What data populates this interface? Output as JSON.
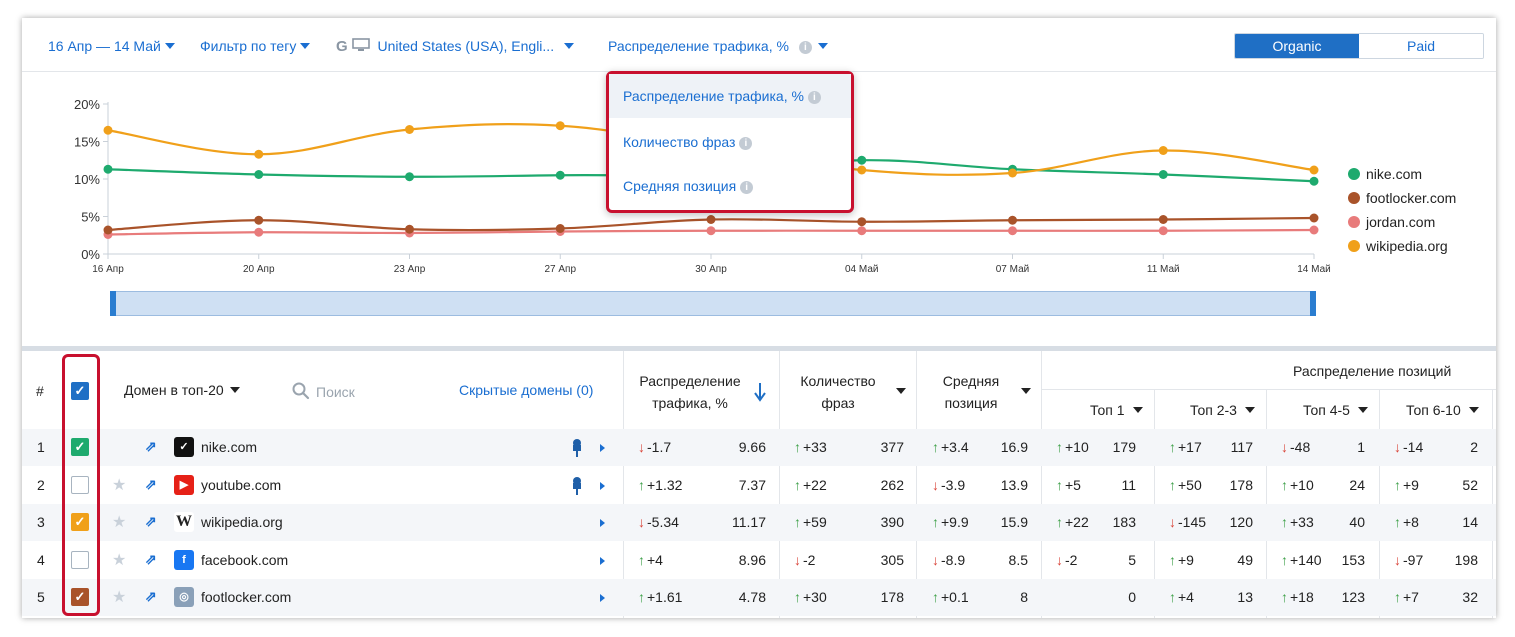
{
  "toolbar": {
    "date_range": "16 Апр — 14 Май",
    "tag_filter": "Фильтр по тегу",
    "region": "United States (USA), Engli...",
    "metric": "Распределение трафика, %",
    "organic": "Organic",
    "paid": "Paid"
  },
  "dropdown": {
    "items": [
      "Распределение трафика, %",
      "Количество фраз",
      "Средняя позиция"
    ]
  },
  "chart_data": {
    "type": "line",
    "x": [
      "16 Апр",
      "20 Апр",
      "23 Апр",
      "27 Апр",
      "30 Апр",
      "04 Май",
      "07 Май",
      "11 Май",
      "14 Май"
    ],
    "ylim": [
      0,
      20
    ],
    "yticks": [
      "0%",
      "5%",
      "10%",
      "15%",
      "20%"
    ],
    "grid": false,
    "legend_position": "right",
    "series": [
      {
        "name": "nike.com",
        "color": "#1eaa6e",
        "values": [
          11.3,
          10.6,
          10.3,
          10.5,
          10.7,
          12.5,
          11.3,
          10.6,
          9.7
        ]
      },
      {
        "name": "footlocker.com",
        "color": "#a9532a",
        "values": [
          3.2,
          4.5,
          3.3,
          3.4,
          4.6,
          4.3,
          4.5,
          4.6,
          4.8
        ]
      },
      {
        "name": "jordan.com",
        "color": "#e87b7b",
        "values": [
          2.6,
          2.9,
          2.8,
          3.0,
          3.1,
          3.1,
          3.1,
          3.1,
          3.2
        ]
      },
      {
        "name": "wikipedia.org",
        "color": "#f0a01a",
        "values": [
          16.5,
          13.3,
          16.6,
          17.1,
          14.2,
          11.2,
          10.8,
          13.8,
          11.2
        ]
      }
    ]
  },
  "table": {
    "headers": {
      "num": "#",
      "domain": "Домен в топ-20",
      "search": "Поиск",
      "hidden": "Скрытые домены (0)",
      "traffic_1": "Распределение",
      "traffic_2": "трафика, %",
      "phrases_1": "Количество",
      "phrases_2": "фраз",
      "avgpos_1": "Средняя",
      "avgpos_2": "позиция",
      "dist": "Распределение позиций",
      "top1": "Топ 1",
      "top23": "Топ 2-3",
      "top45": "Топ 4-5",
      "top610": "Топ 6-10"
    },
    "rows": [
      {
        "num": "1",
        "domain": "nike.com",
        "checked": true,
        "check_color": "#1eaa6e",
        "traffic_d": "-1.7",
        "traffic_dir": "dn",
        "traffic": "9.66",
        "phr_d": "+33",
        "phr_dir": "up",
        "phr": "377",
        "pos_d": "+3.4",
        "pos_dir": "up",
        "pos": "16.9",
        "t1_d": "+10",
        "t1_dir": "up",
        "t1": "179",
        "t23_d": "+17",
        "t23_dir": "up",
        "t23": "117",
        "t45_d": "-48",
        "t45_dir": "dn",
        "t45": "1",
        "t610_d": "-14",
        "t610_dir": "dn",
        "t610": "2"
      },
      {
        "num": "2",
        "domain": "youtube.com",
        "checked": false,
        "check_color": "",
        "traffic_d": "+1.32",
        "traffic_dir": "up",
        "traffic": "7.37",
        "phr_d": "+22",
        "phr_dir": "up",
        "phr": "262",
        "pos_d": "-3.9",
        "pos_dir": "dn",
        "pos": "13.9",
        "t1_d": "+5",
        "t1_dir": "up",
        "t1": "11",
        "t23_d": "+50",
        "t23_dir": "up",
        "t23": "178",
        "t45_d": "+10",
        "t45_dir": "up",
        "t45": "24",
        "t610_d": "+9",
        "t610_dir": "up",
        "t610": "52"
      },
      {
        "num": "3",
        "domain": "wikipedia.org",
        "checked": true,
        "check_color": "#f0a01a",
        "traffic_d": "-5.34",
        "traffic_dir": "dn",
        "traffic": "11.17",
        "phr_d": "+59",
        "phr_dir": "up",
        "phr": "390",
        "pos_d": "+9.9",
        "pos_dir": "up",
        "pos": "15.9",
        "t1_d": "+22",
        "t1_dir": "up",
        "t1": "183",
        "t23_d": "-145",
        "t23_dir": "dn",
        "t23": "120",
        "t45_d": "+33",
        "t45_dir": "up",
        "t45": "40",
        "t610_d": "+8",
        "t610_dir": "up",
        "t610": "14"
      },
      {
        "num": "4",
        "domain": "facebook.com",
        "checked": false,
        "check_color": "",
        "traffic_d": "+4",
        "traffic_dir": "up",
        "traffic": "8.96",
        "phr_d": "-2",
        "phr_dir": "dn",
        "phr": "305",
        "pos_d": "-8.9",
        "pos_dir": "dn",
        "pos": "8.5",
        "t1_d": "-2",
        "t1_dir": "dn",
        "t1": "5",
        "t23_d": "+9",
        "t23_dir": "up",
        "t23": "49",
        "t45_d": "+140",
        "t45_dir": "up",
        "t45": "153",
        "t610_d": "-97",
        "t610_dir": "dn",
        "t610": "198"
      },
      {
        "num": "5",
        "domain": "footlocker.com",
        "checked": true,
        "check_color": "#a9532a",
        "traffic_d": "+1.61",
        "traffic_dir": "up",
        "traffic": "4.78",
        "phr_d": "+30",
        "phr_dir": "up",
        "phr": "178",
        "pos_d": "+0.1",
        "pos_dir": "up",
        "pos": "8",
        "t1_d": "",
        "t1_dir": "",
        "t1": "0",
        "t23_d": "+4",
        "t23_dir": "up",
        "t23": "13",
        "t45_d": "+18",
        "t45_dir": "up",
        "t45": "123",
        "t610_d": "+7",
        "t610_dir": "up",
        "t610": "32"
      }
    ]
  }
}
